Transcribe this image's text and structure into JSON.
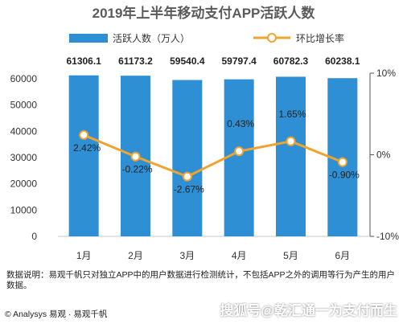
{
  "chart_data": {
    "type": "bar",
    "title": "2019年上半年移动支付APP活跃人数",
    "categories": [
      "1月",
      "2月",
      "3月",
      "4月",
      "5月",
      "6月"
    ],
    "series": [
      {
        "name": "活跃人数（万人）",
        "type": "bar",
        "axis": "left",
        "color": "#2e8fd4",
        "values": [
          61306.1,
          61173.2,
          59540.4,
          59797.4,
          60782.3,
          60238.1
        ],
        "labels": [
          "61306.1",
          "61173.2",
          "59540.4",
          "59797.4",
          "60782.3",
          "60238.1"
        ]
      },
      {
        "name": "环比增长率",
        "type": "line",
        "axis": "right",
        "color": "#f0a32f",
        "values": [
          2.42,
          -0.22,
          -2.67,
          0.43,
          1.65,
          -0.9
        ],
        "labels": [
          "2.42%",
          "-0.22%",
          "-2.67%",
          "0.43%",
          "1.65%",
          "-0.90%"
        ]
      }
    ],
    "y_left": {
      "ylim": [
        0,
        60000
      ],
      "ticks": [
        "0",
        "10000",
        "20000",
        "30000",
        "40000",
        "50000",
        "60000"
      ]
    },
    "y_right": {
      "ylim": [
        -10,
        10
      ],
      "ticks": [
        "10%",
        "0%",
        "-10%"
      ]
    },
    "grid": false,
    "legend_position": "top"
  },
  "footer": {
    "note": "数据说明：易观千帆只对独立APP中的用户数据进行检测统计，不包括APP之外的调用等行为产生的用户数据。",
    "brand": "© Analysys 易观 · 易观千帆",
    "watermark": "搜狐号@乾汇通一为支付而生"
  }
}
